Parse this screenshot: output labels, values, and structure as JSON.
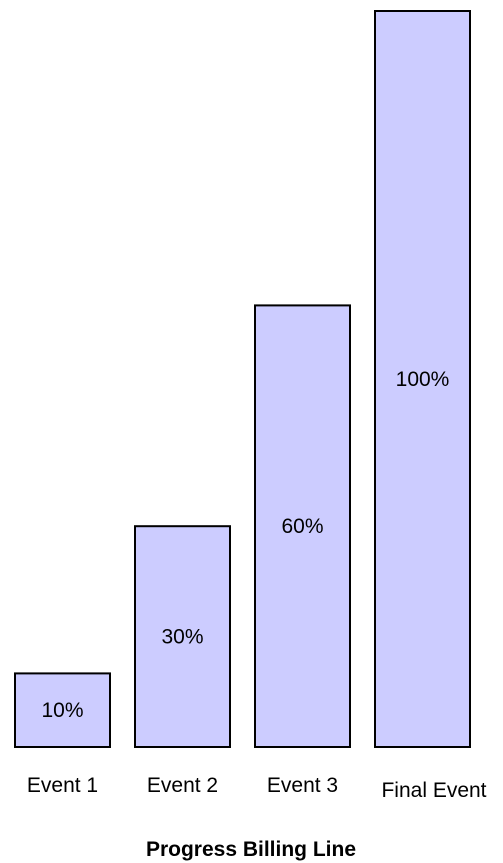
{
  "chart_data": {
    "type": "bar",
    "categories": [
      "Event 1",
      "Event 2",
      "Event 3",
      "Final Event"
    ],
    "values": [
      10,
      30,
      60,
      100
    ],
    "data_labels": [
      "10%",
      "30%",
      "60%",
      "100%"
    ],
    "title": "",
    "xlabel": "Progress Billing Line",
    "ylabel": "",
    "ylim": [
      0,
      100
    ],
    "grid": false,
    "legend": "none",
    "colors": {
      "bar_fill": "#ccccff",
      "bar_stroke": "#000000"
    }
  }
}
